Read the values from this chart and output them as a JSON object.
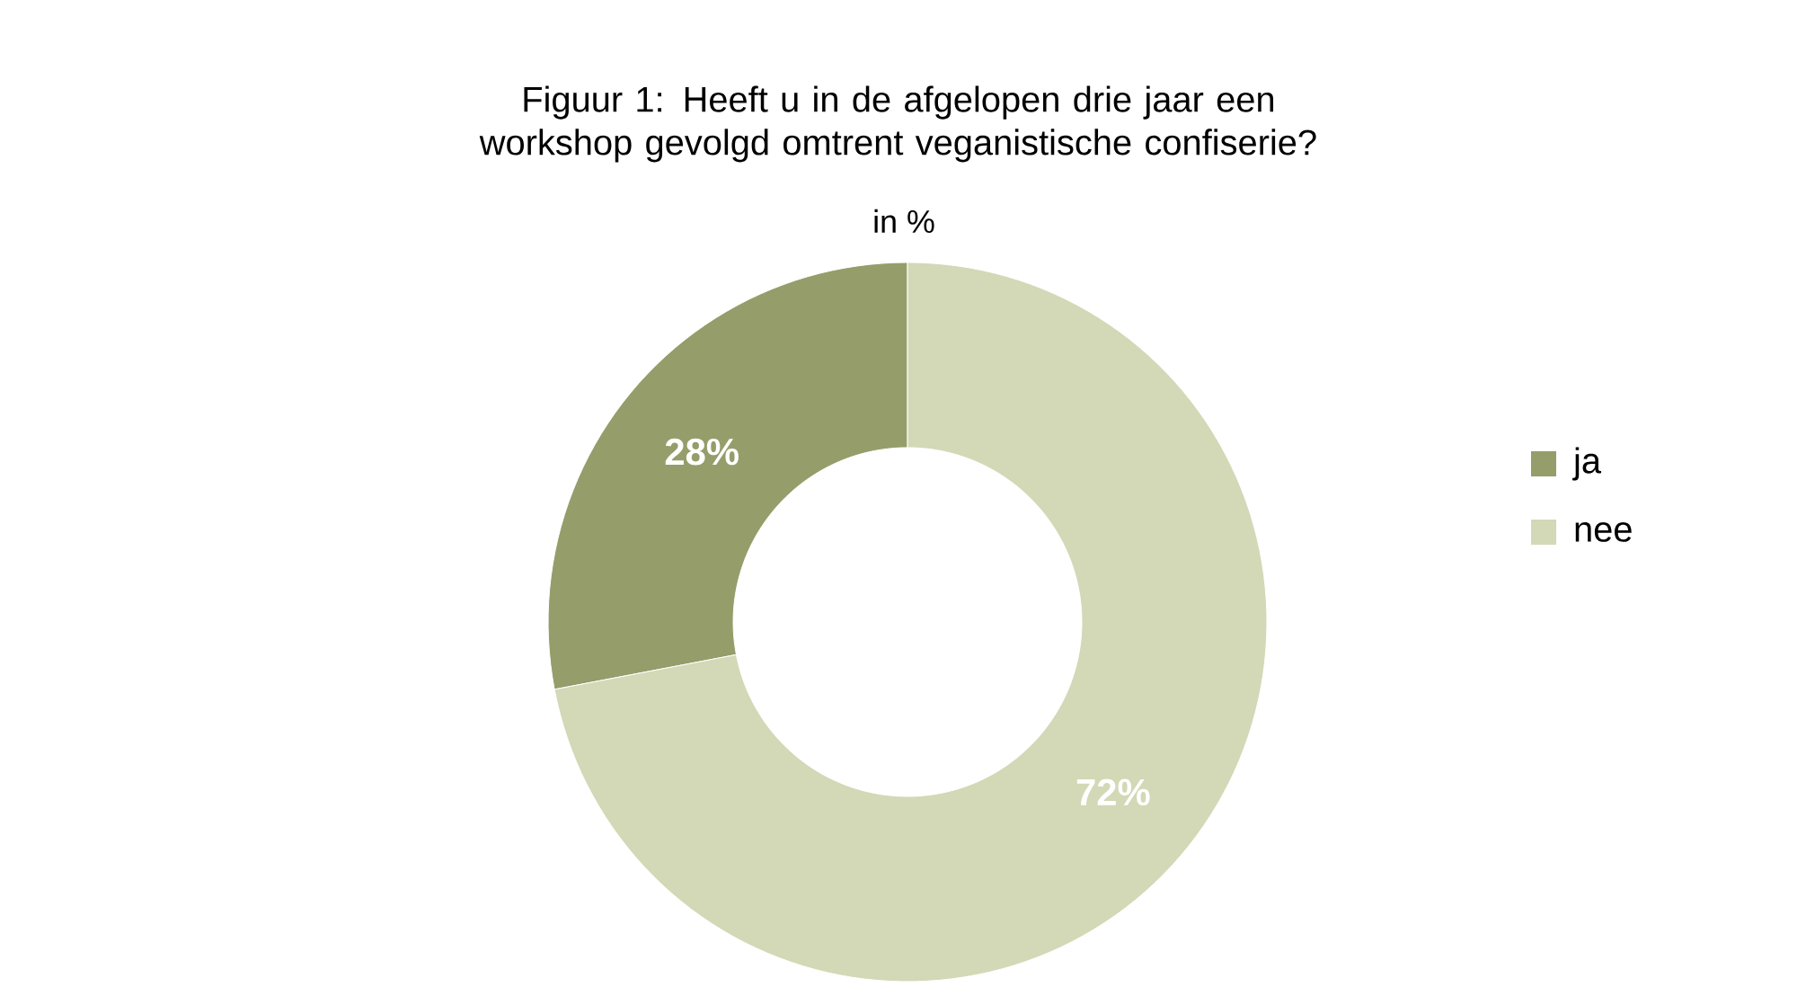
{
  "chart_data": {
    "type": "donut",
    "title": "Figuur 1: Heeft u in de afgelopen drie jaar een workshop gevolgd omtrent veganistische confiserie?",
    "subtitle": "in %",
    "categories": [
      "ja",
      "nee"
    ],
    "values": [
      28,
      72
    ],
    "colors": [
      "#959d6a",
      "#d3d8b6"
    ],
    "value_labels": [
      "28%",
      "72%"
    ],
    "legend": "right"
  }
}
